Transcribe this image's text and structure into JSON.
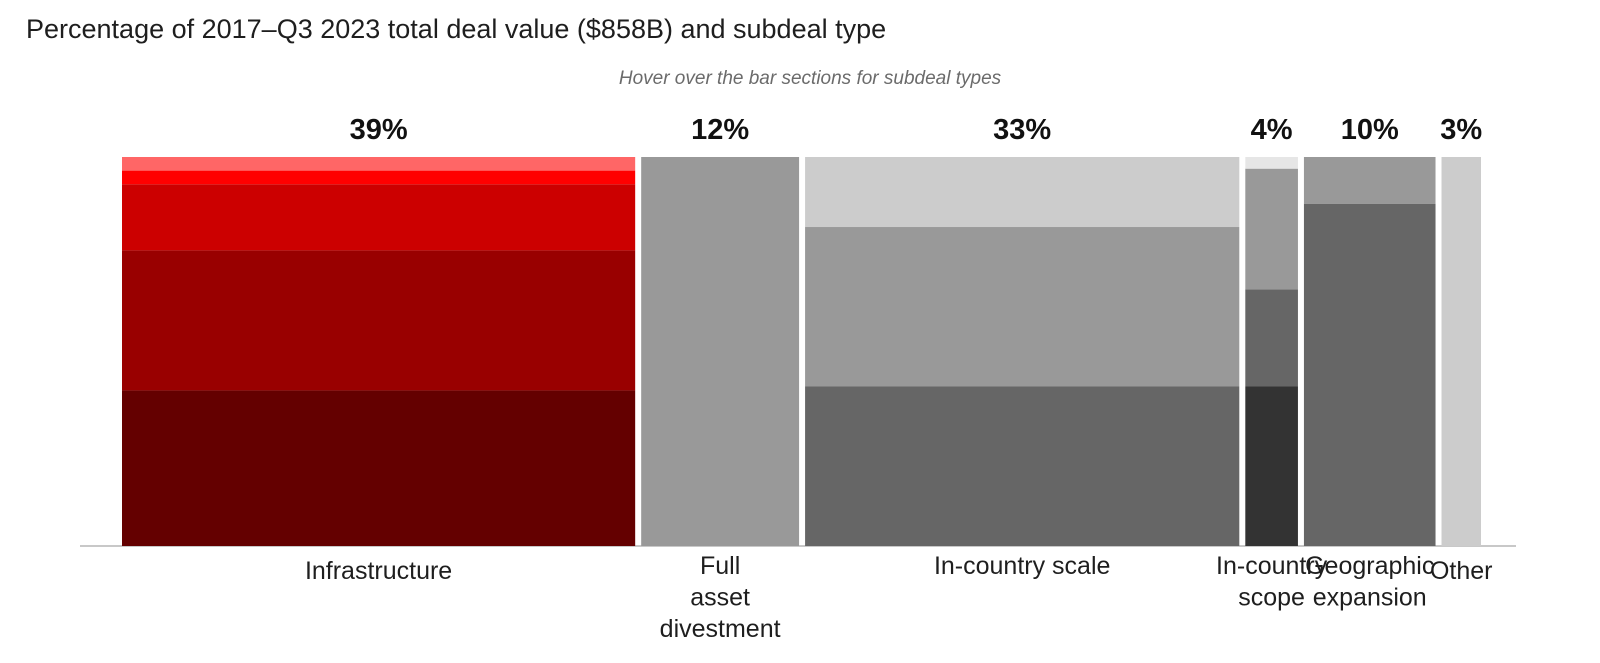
{
  "header": {
    "title": "Percentage of 2017–Q3 2023 total deal value ($858B) and subdeal type",
    "subtitle": "Hover over the bar sections for subdeal types"
  },
  "chart_data": {
    "type": "marimekko",
    "title": "Percentage of 2017–Q3 2023 total deal value ($858B) and subdeal type",
    "subtitle": "Hover over the bar sections for subdeal types",
    "total_value": "$858B",
    "ylim": [
      0,
      100
    ],
    "bars": [
      {
        "category": "Infrastructure",
        "label_lines": [
          "Infrastructure"
        ],
        "share_label": "39%",
        "width_share": 39,
        "segments": [
          {
            "value": 40,
            "color": "#640000"
          },
          {
            "value": 36,
            "color": "#990000"
          },
          {
            "value": 17,
            "color": "#cc0000"
          },
          {
            "value": 3.5,
            "color": "#ff0000"
          },
          {
            "value": 3.5,
            "color": "#ff6666"
          }
        ]
      },
      {
        "category": "Full asset divestment",
        "label_lines": [
          "Full",
          "asset",
          "divestment"
        ],
        "share_label": "12%",
        "width_share": 12,
        "segments": [
          {
            "value": 100,
            "color": "#999999"
          }
        ]
      },
      {
        "category": "In-country scale",
        "label_lines": [
          "In-country scale"
        ],
        "share_label": "33%",
        "width_share": 33,
        "segments": [
          {
            "value": 41,
            "color": "#666666"
          },
          {
            "value": 41,
            "color": "#999999"
          },
          {
            "value": 18,
            "color": "#cccccc"
          }
        ]
      },
      {
        "category": "In-country scope",
        "label_lines": [
          "In-country",
          "scope"
        ],
        "share_label": "4%",
        "width_share": 4,
        "segments": [
          {
            "value": 41,
            "color": "#333333"
          },
          {
            "value": 25,
            "color": "#666666"
          },
          {
            "value": 31,
            "color": "#999999"
          },
          {
            "value": 3,
            "color": "#e6e6e6"
          }
        ]
      },
      {
        "category": "Geographic expansion",
        "label_lines": [
          "Geographic",
          "expansion"
        ],
        "share_label": "10%",
        "width_share": 10,
        "segments": [
          {
            "value": 88,
            "color": "#666666"
          },
          {
            "value": 12,
            "color": "#999999"
          }
        ]
      },
      {
        "category": "Other",
        "label_lines": [
          "Other"
        ],
        "share_label": "3%",
        "width_share": 3,
        "segments": [
          {
            "value": 100,
            "color": "#cccccc"
          }
        ]
      }
    ]
  }
}
